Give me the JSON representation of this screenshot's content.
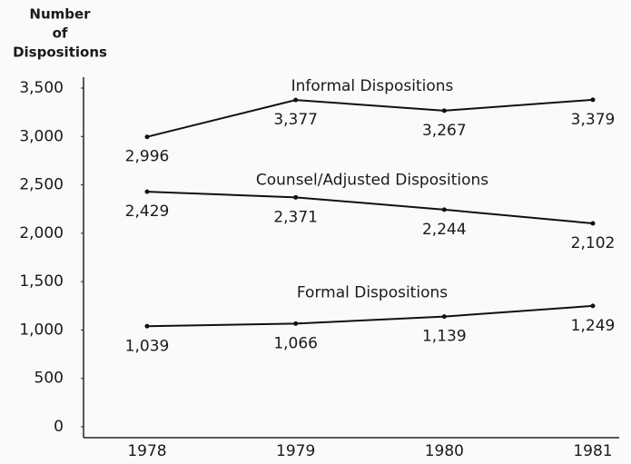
{
  "chart_data": {
    "type": "line",
    "y_label_lines": [
      "Number",
      "of",
      "Dispositions"
    ],
    "categories": [
      "1978",
      "1979",
      "1980",
      "1981"
    ],
    "series": [
      {
        "name": "Informal Dispositions",
        "color": "#111111",
        "values": [
          2996,
          3377,
          3267,
          3379
        ],
        "value_labels": [
          "2,996",
          "3,377",
          "3,267",
          "3,379"
        ]
      },
      {
        "name": "Counsel/Adjusted Dispositions",
        "color": "#111111",
        "values": [
          2429,
          2371,
          2244,
          2102
        ],
        "value_labels": [
          "2,429",
          "2,371",
          "2,244",
          "2,102"
        ]
      },
      {
        "name": "Formal Dispositions",
        "color": "#111111",
        "values": [
          1039,
          1066,
          1139,
          1249
        ],
        "value_labels": [
          "1,039",
          "1,066",
          "1,139",
          "1,249"
        ]
      }
    ],
    "ylim": [
      0,
      3500
    ],
    "yticks": [
      0,
      500,
      {
        "value": 1000,
        "label": "1,000"
      },
      {
        "value": 1500,
        "label": "1,500"
      },
      {
        "value": 2000,
        "label": "2,000"
      },
      {
        "value": 2500,
        "label": "2,500"
      },
      {
        "value": 3000,
        "label": "3,000"
      },
      {
        "value": 3500,
        "label": "3,500"
      }
    ],
    "grid": false
  }
}
